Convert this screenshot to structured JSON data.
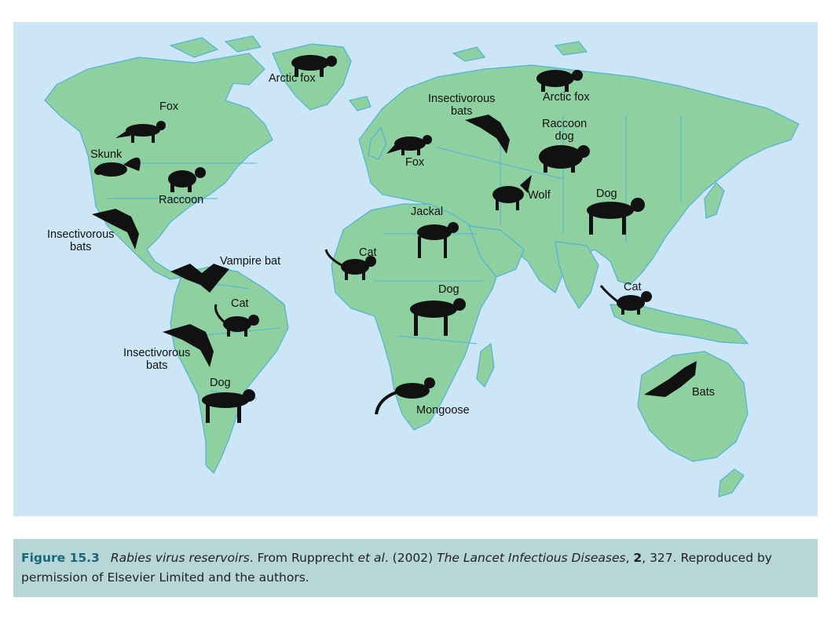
{
  "map": {
    "labels": {
      "arctic_fox_greenland": "Arctic fox",
      "fox_na": "Fox",
      "skunk": "Skunk",
      "raccoon": "Raccoon",
      "insectivorous_bats_na": "Insectivorous\nbats",
      "vampire_bat": "Vampire bat",
      "cat_sa": "Cat",
      "insectivorous_bats_sa": "Insectivorous\nbats",
      "dog_sa": "Dog",
      "insectivorous_bats_eu": "Insectivorous\nbats",
      "fox_eu": "Fox",
      "arctic_fox_russia": "Arctic fox",
      "raccoon_dog": "Raccoon\ndog",
      "wolf": "Wolf",
      "dog_asia": "Dog",
      "jackal": "Jackal",
      "cat_wafrica": "Cat",
      "dog_africa": "Dog",
      "mongoose": "Mongoose",
      "cat_seasia": "Cat",
      "bats_australia": "Bats"
    },
    "colors": {
      "ocean": "#cde6f5",
      "land": "#8fd0a0",
      "border": "#4fb3d9",
      "silhouette": "#111111"
    }
  },
  "caption": {
    "figure_number": "Figure 15.3",
    "title": "Rabies virus reservoirs",
    "text_1": ". From Rupprecht ",
    "et_al": "et al",
    "text_2": ". (2002) ",
    "journal": "The Lancet Infectious Diseases",
    "text_3": ", ",
    "volume": "2",
    "text_4": ", 327. Reproduced by permission of Elsevier Limited and the authors."
  }
}
